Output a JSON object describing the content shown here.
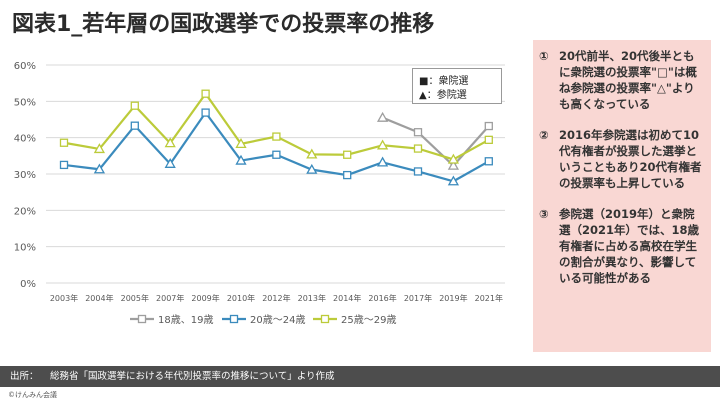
{
  "title": "図表1_若年層の国政選挙での投票率の推移",
  "legend_box": {
    "shugiin": "■：衆院選",
    "sangiin": "▲：参院選"
  },
  "notes": [
    {
      "num": "①",
      "text": "20代前半、20代後半ともに衆院選の投票率\"□\"は概ね参院選の投票率\"△\"よりも高くなっている"
    },
    {
      "num": "②",
      "text": "2016年参院選は初めて10代有権者が投票した選挙ということもあり20代有権者の投票率も上昇している"
    },
    {
      "num": "③",
      "text": "参院選（2019年）と衆院選（2021年）では、18歳有権者に占める高校在学生の割合が異なり、影響している可能性がある"
    }
  ],
  "footer": {
    "label": "出所：",
    "source": "総務省「国政選挙における年代別投票率の推移について」より作成"
  },
  "copyright": "©けんみん会議",
  "chart_data": {
    "type": "line",
    "categories": [
      "2003年",
      "2004年",
      "2005年",
      "2007年",
      "2009年",
      "2010年",
      "2012年",
      "2013年",
      "2014年",
      "2016年",
      "2017年",
      "2019年",
      "2021年"
    ],
    "marker_types": [
      "shu",
      "san",
      "shu",
      "san",
      "shu",
      "san",
      "shu",
      "san",
      "shu",
      "san",
      "shu",
      "san",
      "shu"
    ],
    "ylim": [
      0,
      60
    ],
    "yticks": [
      0,
      10,
      20,
      30,
      40,
      50,
      60
    ],
    "ytick_labels": [
      "0%",
      "10%",
      "20%",
      "30%",
      "40%",
      "50%",
      "60%"
    ],
    "grid": true,
    "legend_position": "bottom",
    "series": [
      {
        "name": "18歳、19歳",
        "color": "#9e9e9e",
        "values": [
          null,
          null,
          null,
          null,
          null,
          null,
          null,
          null,
          null,
          45.5,
          41.5,
          32.3,
          43.2
        ]
      },
      {
        "name": "20歳～24歳",
        "color": "#3b8bbd",
        "values": [
          32.5,
          31.3,
          43.3,
          32.8,
          46.9,
          33.7,
          35.3,
          31.2,
          29.7,
          33.2,
          30.7,
          28.0,
          33.5
        ]
      },
      {
        "name": "25歳～29歳",
        "color": "#bccb3a",
        "values": [
          38.6,
          36.9,
          48.8,
          38.5,
          52.1,
          38.3,
          40.3,
          35.4,
          35.3,
          37.9,
          37.0,
          34.0,
          39.4
        ]
      }
    ]
  }
}
